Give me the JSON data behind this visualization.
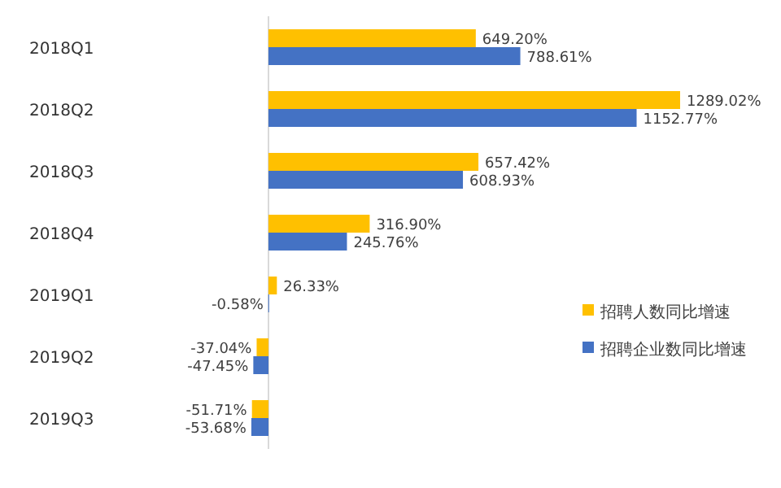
{
  "chart_data": {
    "type": "bar",
    "orientation": "horizontal",
    "categories": [
      "2018Q1",
      "2018Q2",
      "2018Q3",
      "2018Q4",
      "2019Q1",
      "2019Q2",
      "2019Q3"
    ],
    "legend": "right",
    "series": [
      {
        "name": "招聘人数同比增速",
        "color": "#ffc000",
        "values": [
          649.2,
          1289.02,
          657.42,
          316.9,
          26.33,
          -37.04,
          -51.71
        ],
        "value_labels": [
          "649.20%",
          "1289.02%",
          "657.42%",
          "316.90%",
          "26.33%",
          "-37.04%",
          "-51.71%"
        ]
      },
      {
        "name": "招聘企业数同比增速",
        "color": "#4472c4",
        "values": [
          788.61,
          1152.77,
          608.93,
          245.76,
          -0.58,
          -47.45,
          -53.68
        ],
        "value_labels": [
          "788.61%",
          "1152.77%",
          "608.93%",
          "245.76%",
          "-0.58%",
          "-47.45%",
          "-53.68%"
        ]
      }
    ]
  }
}
